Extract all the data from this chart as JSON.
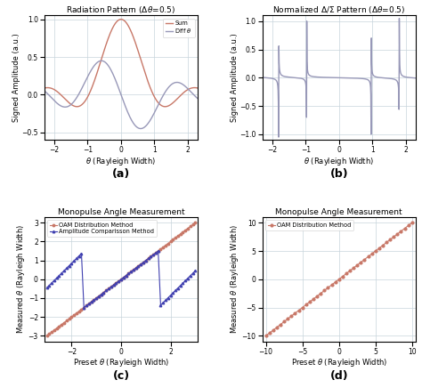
{
  "fig_width": 4.74,
  "fig_height": 4.36,
  "title_a": "Radiation Pattern ($\\Delta\\theta$=0.5)",
  "title_b": "Normalized $\\Delta/\\Sigma$ Pattern ($\\Delta\\theta$=0.5)",
  "title_c": "Monopulse Angle Measurement",
  "title_d": "Monopulse Angle Measurement",
  "xlabel_ab": "$\\theta$ (Rayleigh Width)",
  "ylabel_ab": "Signed Amplitude (a.u.)",
  "xlabel_cd": "Preset $\\theta$ (Rayleigh Width)",
  "ylabel_cd": "Measured $\\theta$ (Rayleigh Width)",
  "label_a": "(a)",
  "label_b": "(b)",
  "label_c": "(c)",
  "label_d": "(d)",
  "sum_color": "#c87868",
  "diff_color": "#9898b8",
  "norm_color": "#9898b8",
  "oam_color_c": "#c87868",
  "amp_color_c": "#4040b0",
  "oam_color_d": "#c87868",
  "grid_color": "#c8d4dc",
  "legend_sum": "Sum",
  "legend_diff": "Diff $\\theta$",
  "legend_oam_c": "OAM Distribution Method",
  "legend_amp_c": "Amplitude Comparisson Method",
  "legend_oam_d": "OAM Distribution Method",
  "xlim_ab": [
    -2.3,
    2.3
  ],
  "ylim_a": [
    -0.6,
    1.05
  ],
  "ylim_b": [
    -1.1,
    1.1
  ],
  "xlim_c": [
    -3.1,
    3.1
  ],
  "ylim_c": [
    -3.3,
    3.3
  ],
  "xlim_d": [
    -10.5,
    10.5
  ],
  "ylim_d": [
    -11,
    11
  ],
  "xticks_ab": [
    -2,
    -1,
    0,
    1,
    2
  ],
  "yticks_a": [
    -0.5,
    0,
    0.5,
    1
  ],
  "yticks_b": [
    -1,
    -0.5,
    0,
    0.5,
    1
  ],
  "xticks_c": [
    -2,
    0,
    2
  ],
  "yticks_c": [
    -3,
    -2,
    -1,
    0,
    1,
    2,
    3
  ],
  "xticks_d": [
    -10,
    -5,
    0,
    5,
    10
  ],
  "yticks_d": [
    -10,
    -5,
    0,
    5,
    10
  ],
  "title_fontsize": 6.5,
  "label_fontsize": 6,
  "tick_fontsize": 5.5,
  "legend_fontsize": 4.8,
  "sublabel_fontsize": 9
}
